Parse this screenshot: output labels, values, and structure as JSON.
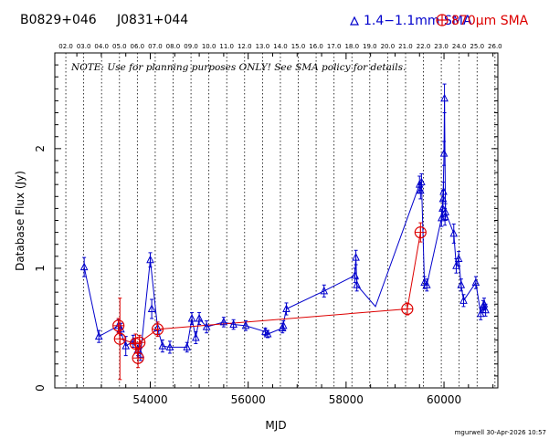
{
  "header": {
    "source_name": "B0829+046",
    "source_alias": "J0831+044",
    "legend_blue": "1.4−1.1mm SMA",
    "legend_red": "870μm SMA"
  },
  "note": "NOTE: Use for planning purposes ONLY!  See SMA policy for details.",
  "footer": "mgurwell 30-Apr-2026 10:57",
  "colors": {
    "blue": "#0000cc",
    "red": "#dd0000",
    "axis": "#000000"
  },
  "chart_data": {
    "type": "scatter",
    "xlabel": "MJD",
    "ylabel": "Database Flux (Jy)",
    "xlim": [
      52050,
      61100
    ],
    "ylim": [
      0,
      2.8
    ],
    "x_ticks": [
      54000,
      56000,
      58000,
      60000
    ],
    "y_ticks": [
      0,
      1,
      2
    ],
    "year_labels": [
      "02.0",
      "03.0",
      "04.0",
      "05.0",
      "06.0",
      "07.0",
      "08.0",
      "09.0",
      "10.0",
      "11.0",
      "12.0",
      "13.0",
      "14.0",
      "15.0",
      "16.0",
      "17.0",
      "18.0",
      "19.0",
      "20.0",
      "21.0",
      "22.0",
      "23.0",
      "24.0",
      "25.0",
      "26.0"
    ],
    "year_mjd": [
      52275,
      52640,
      53005,
      53371,
      53736,
      54101,
      54466,
      54832,
      55197,
      55562,
      55927,
      56293,
      56658,
      57023,
      57388,
      57754,
      58119,
      58484,
      58849,
      59215,
      59580,
      59945,
      60310,
      60676,
      61041
    ],
    "series": [
      {
        "name": "1.4−1.1mm SMA",
        "marker": "triangle",
        "x": [
          52650,
          52950,
          53350,
          53400,
          53500,
          53650,
          53750,
          53800,
          54000,
          54030,
          54150,
          54250,
          54400,
          54750,
          54850,
          54930,
          55000,
          55150,
          55500,
          55700,
          55950,
          56350,
          56400,
          56700,
          56720,
          56780,
          57550,
          58180,
          58200,
          58220,
          59500,
          59520,
          59540,
          59600,
          59650,
          59950,
          59970,
          59980,
          59990,
          60000,
          60010,
          60020,
          60030,
          60200,
          60250,
          60300,
          60350,
          60400,
          60650,
          60750,
          60800,
          60820,
          60850
        ],
        "y": [
          1.01,
          0.43,
          0.52,
          0.49,
          0.35,
          0.39,
          0.32,
          0.28,
          1.07,
          0.66,
          0.5,
          0.35,
          0.34,
          0.34,
          0.58,
          0.42,
          0.58,
          0.51,
          0.55,
          0.53,
          0.52,
          0.47,
          0.45,
          0.5,
          0.52,
          0.66,
          0.81,
          0.94,
          1.09,
          0.86,
          1.7,
          1.65,
          1.72,
          0.88,
          0.86,
          1.42,
          1.5,
          1.58,
          1.64,
          1.96,
          2.42,
          1.43,
          1.47,
          1.29,
          1.02,
          1.08,
          0.86,
          0.73,
          0.88,
          0.62,
          0.68,
          0.7,
          0.65
        ],
        "err": [
          0.08,
          0.05,
          0.05,
          0.05,
          0.08,
          0.05,
          0.05,
          0.05,
          0.06,
          0.08,
          0.05,
          0.05,
          0.05,
          0.04,
          0.05,
          0.05,
          0.05,
          0.05,
          0.04,
          0.04,
          0.04,
          0.03,
          0.03,
          0.04,
          0.04,
          0.05,
          0.05,
          0.06,
          0.06,
          0.05,
          0.07,
          0.07,
          0.07,
          0.05,
          0.05,
          0.07,
          0.07,
          0.07,
          0.08,
          0.1,
          0.12,
          0.07,
          0.07,
          0.08,
          0.06,
          0.06,
          0.05,
          0.05,
          0.05,
          0.05,
          0.05,
          0.05,
          0.05
        ]
      },
      {
        "name": "870μm SMA",
        "marker": "circle-plus",
        "x": [
          53350,
          53380,
          53700,
          53750,
          53780,
          54150,
          59250,
          59520
        ],
        "y": [
          0.52,
          0.41,
          0.37,
          0.25,
          0.38,
          0.49,
          0.66,
          1.3
        ],
        "err": [
          0.06,
          0.34,
          0.08,
          0.08,
          0.06,
          0.06,
          0.05,
          0.08
        ]
      }
    ],
    "lines": {
      "blue": [
        [
          52650,
          1.01
        ],
        [
          52950,
          0.43
        ],
        [
          53350,
          0.52
        ],
        [
          53500,
          0.35
        ],
        [
          53650,
          0.39
        ],
        [
          53800,
          0.28
        ],
        [
          54000,
          1.07
        ],
        [
          54150,
          0.5
        ],
        [
          54250,
          0.35
        ],
        [
          54400,
          0.34
        ],
        [
          54750,
          0.34
        ],
        [
          54850,
          0.58
        ],
        [
          54930,
          0.42
        ],
        [
          55000,
          0.58
        ],
        [
          55150,
          0.51
        ],
        [
          55500,
          0.55
        ],
        [
          55700,
          0.53
        ],
        [
          55950,
          0.52
        ],
        [
          56350,
          0.47
        ],
        [
          56400,
          0.45
        ],
        [
          56700,
          0.5
        ],
        [
          56780,
          0.66
        ],
        [
          57550,
          0.81
        ],
        [
          58180,
          0.94
        ],
        [
          58200,
          1.09
        ],
        [
          58220,
          0.86
        ],
        [
          58600,
          0.68
        ],
        [
          59500,
          1.7
        ],
        [
          59540,
          1.72
        ],
        [
          59600,
          0.88
        ],
        [
          59650,
          0.86
        ],
        [
          59950,
          1.42
        ],
        [
          59980,
          1.58
        ],
        [
          60000,
          1.96
        ],
        [
          60010,
          2.42
        ],
        [
          60030,
          1.47
        ],
        [
          60200,
          1.29
        ],
        [
          60250,
          1.02
        ],
        [
          60300,
          1.08
        ],
        [
          60350,
          0.86
        ],
        [
          60400,
          0.73
        ],
        [
          60650,
          0.88
        ],
        [
          60750,
          0.62
        ],
        [
          60820,
          0.7
        ],
        [
          60850,
          0.65
        ]
      ],
      "red": [
        [
          53350,
          0.52
        ],
        [
          53380,
          0.41
        ],
        [
          53700,
          0.37
        ],
        [
          53750,
          0.25
        ],
        [
          53780,
          0.38
        ],
        [
          54150,
          0.49
        ],
        [
          59250,
          0.66
        ],
        [
          59520,
          1.3
        ]
      ]
    }
  }
}
